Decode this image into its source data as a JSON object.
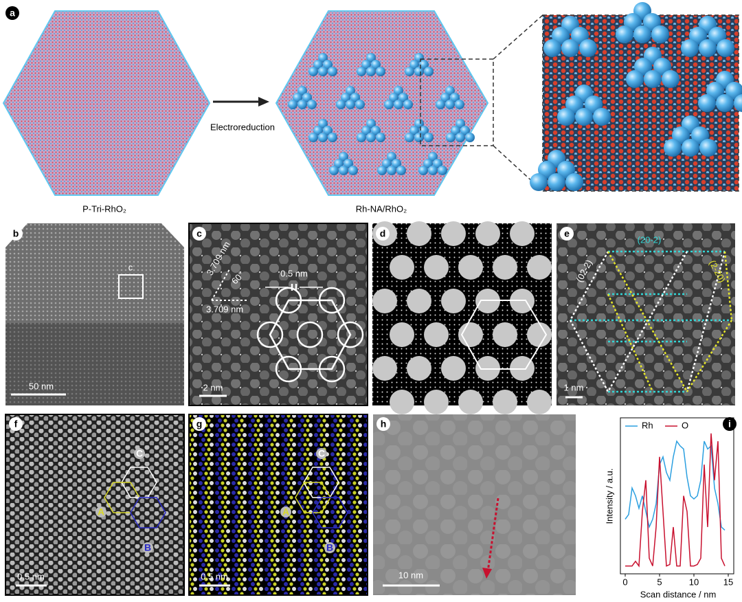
{
  "panel_a": {
    "label": "a",
    "arrow_label": "Electroreduction",
    "left_caption": "P-Tri-RhO₂",
    "right_caption": "Rh-NA/RhO₂"
  },
  "panel_b": {
    "label": "b",
    "box_label": "c",
    "scale_bar": "50 nm"
  },
  "panel_c": {
    "label": "c",
    "spacing": "0.5 nm",
    "distance_1": "3.709 nm",
    "distance_2": "3.709 nm",
    "angle": "60°",
    "scale_bar": "2 nm"
  },
  "panel_d": {
    "label": "d"
  },
  "panel_e": {
    "label": "e",
    "planes": [
      "(20-2)",
      "(02-2)",
      "(2-20)"
    ],
    "scale_bar": "1 nm"
  },
  "panel_f": {
    "label": "f",
    "sites": [
      "C",
      "A",
      "B"
    ],
    "scale_bar": "0.5 nm"
  },
  "panel_g": {
    "label": "g",
    "sites": [
      "C",
      "A",
      "B"
    ],
    "scale_bar": "0.5 nm"
  },
  "panel_h": {
    "label": "h",
    "scale_bar": "10 nm"
  },
  "chart_data": {
    "type": "line",
    "label": "i",
    "x": [
      0,
      0.5,
      1,
      1.5,
      2,
      2.5,
      3,
      3.5,
      4,
      4.5,
      5,
      5.5,
      6,
      6.5,
      7,
      7.5,
      8,
      8.5,
      9,
      9.5,
      10,
      10.5,
      11,
      11.5,
      12,
      12.5,
      13,
      13.5,
      14,
      14.5
    ],
    "series": [
      {
        "name": "Rh",
        "color": "#2a9fe0",
        "values": [
          0.35,
          0.38,
          0.55,
          0.5,
          0.42,
          0.5,
          0.4,
          0.3,
          0.35,
          0.45,
          0.7,
          0.75,
          0.65,
          0.6,
          0.75,
          0.85,
          0.82,
          0.8,
          0.62,
          0.5,
          0.48,
          0.5,
          0.6,
          0.85,
          0.8,
          0.82,
          0.55,
          0.45,
          0.3,
          0.28
        ]
      },
      {
        "name": "O",
        "color": "#c8102e",
        "values": [
          0.05,
          0.05,
          0.05,
          0.08,
          0.05,
          0.4,
          0.6,
          0.1,
          0.05,
          0.3,
          0.75,
          0.4,
          0.05,
          0.06,
          0.3,
          0.05,
          0.05,
          0.5,
          0.4,
          0.05,
          0.05,
          0.06,
          0.1,
          0.7,
          0.3,
          0.9,
          0.6,
          0.85,
          0.1,
          0.05
        ]
      }
    ],
    "xlim": [
      -0.7,
      15.8
    ],
    "ylim": [
      0,
      1
    ],
    "xticks": [
      0,
      5,
      10,
      15
    ],
    "xlabel": "Scan distance / nm",
    "ylabel": "Intensity / a.u.",
    "legend": "top"
  }
}
